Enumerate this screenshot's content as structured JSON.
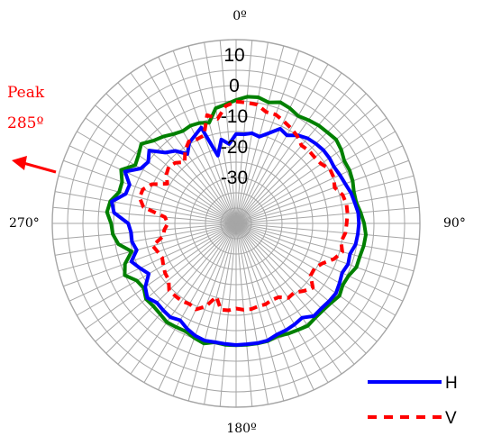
{
  "chart_data": {
    "type": "line",
    "polar": true,
    "theta_unit": "degrees",
    "theta_zero": "top",
    "theta_direction": "clockwise",
    "r_ticks": [
      10,
      0,
      -10,
      -20,
      -30
    ],
    "r_tick_labels": [
      "10",
      "0",
      "-10",
      "-20",
      "-30"
    ],
    "r_range": [
      -45,
      15
    ],
    "angle_labels": [
      {
        "deg": 0,
        "text": "0º"
      },
      {
        "deg": 90,
        "text": "90°"
      },
      {
        "deg": 180,
        "text": "180º"
      },
      {
        "deg": 270,
        "text": "270°"
      }
    ],
    "grid": true,
    "spokes_every_deg": 5,
    "annotation": {
      "line1": "Peak",
      "line2": "285º",
      "arrow_deg": 285
    },
    "legend_position": "bottom-right",
    "series": [
      {
        "name": "",
        "color": "#008000",
        "dash": "solid",
        "theta_step": 5,
        "values": [
          -4.7,
          -3.5,
          -3.2,
          -4.1,
          -2.9,
          -3.5,
          -4.5,
          -3.8,
          -3.2,
          -2.9,
          -2.4,
          -3.1,
          -4.2,
          -4.1,
          -4.5,
          -5.2,
          -5.2,
          -4.2,
          -3.2,
          -2.5,
          -2.7,
          -3.2,
          -3.2,
          -4.5,
          -4.8,
          -3.8,
          -4.6,
          -4.9,
          -4.8,
          -4.2,
          -4.8,
          -5.2,
          -5.8,
          -5.2,
          -5.2,
          -5.2,
          -5.2,
          -5.2,
          -5.6,
          -4.4,
          -5.2,
          -6.1,
          -5.9,
          -5.6,
          -6.4,
          -6.8,
          -6.6,
          -8.2,
          -7.6,
          -4.9,
          -6.4,
          -9.7,
          -6.0,
          -4.6,
          -4.2,
          -2.7,
          -3.3,
          -5.5,
          -5.4,
          -3.6,
          -7.0,
          -6.1,
          -4.6,
          -6.8,
          -8.0,
          -9.4,
          -10.2,
          -9.8,
          -10.1,
          -11.0,
          -6.8,
          -6.0
        ]
      },
      {
        "name": "H",
        "color": "#0000ff",
        "dash": "solid",
        "theta_step": 5,
        "values": [
          -15.8,
          -15.8,
          -15.1,
          -15.7,
          -13.6,
          -10.9,
          -11.8,
          -9.9,
          -8.7,
          -8.2,
          -7.8,
          -7.8,
          -8.1,
          -7.6,
          -7.1,
          -6.2,
          -5.7,
          -5.0,
          -4.9,
          -5.1,
          -5.4,
          -6.5,
          -6.1,
          -6.8,
          -6.0,
          -5.2,
          -5.4,
          -5.7,
          -5.5,
          -7.4,
          -6.9,
          -6.5,
          -6.3,
          -5.4,
          -5.3,
          -5.4,
          -5.3,
          -5.5,
          -5.6,
          -5.4,
          -6.0,
          -7.1,
          -8.5,
          -7.6,
          -8.0,
          -8.4,
          -7.2,
          -8.8,
          -12.1,
          -10.4,
          -8.6,
          -11.4,
          -10.5,
          -10.6,
          -9.8,
          -5.0,
          -3.8,
          -7.7,
          -8.0,
          -5.0,
          -9.1,
          -10.0,
          -8.0,
          -12.3,
          -14.1,
          -17.3,
          -14.5,
          -13.3,
          -11.7,
          -22.1,
          -17.2,
          -19.0
        ]
      },
      {
        "name": "V",
        "color": "#ff0000",
        "dash": "dashed",
        "theta_step": 5,
        "values": [
          -5.2,
          -5.4,
          -5.6,
          -7.3,
          -7.2,
          -8.2,
          -9.1,
          -10.2,
          -11.8,
          -11.4,
          -11.5,
          -11.1,
          -9.6,
          -9.8,
          -10.8,
          -9.0,
          -8.4,
          -8.5,
          -8.9,
          -9.2,
          -10.2,
          -9.1,
          -11.0,
          -14.0,
          -15.5,
          -15.3,
          -12.3,
          -13.8,
          -15.5,
          -15.3,
          -17.2,
          -17.4,
          -16.9,
          -17.0,
          -16.6,
          -16.7,
          -17.2,
          -16.5,
          -16.4,
          -20.2,
          -16.2,
          -14.0,
          -14.6,
          -14.1,
          -14.1,
          -14.1,
          -16.3,
          -16.7,
          -17.6,
          -18.4,
          -17.8,
          -16.8,
          -20.8,
          -21.5,
          -22.7,
          -21.7,
          -14.3,
          -12.4,
          -12.6,
          -14.7,
          -19.1,
          -17.2,
          -16.3,
          -17.0,
          -18.9,
          -16.0,
          -14.1,
          -14.7,
          -14.4,
          -8.4,
          -10.3,
          -6.5
        ]
      }
    ]
  },
  "legend": [
    {
      "label": "H",
      "color": "#0000ff",
      "dash": "solid"
    },
    {
      "label": "V",
      "color": "#ff0000",
      "dash": "dashed"
    }
  ]
}
